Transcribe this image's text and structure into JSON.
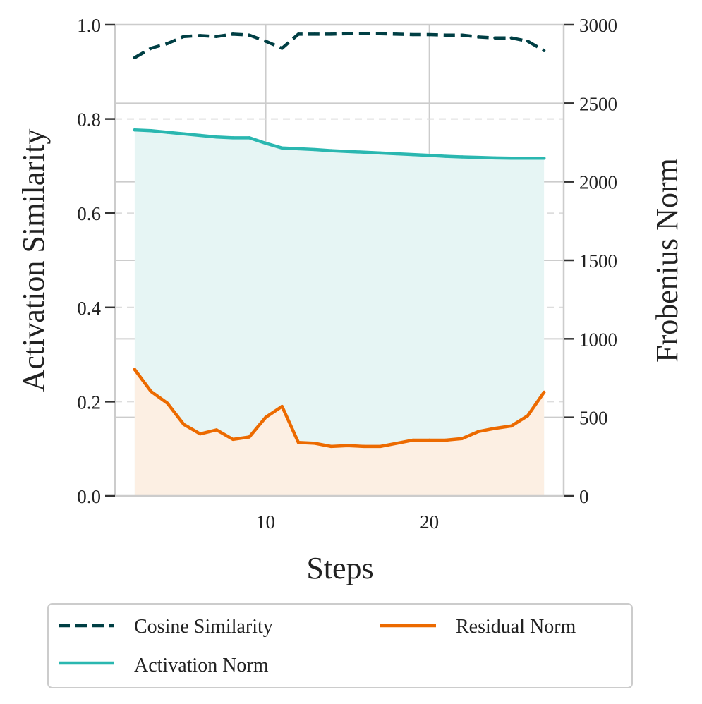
{
  "chart_data": {
    "type": "line",
    "x": [
      2,
      3,
      4,
      5,
      6,
      7,
      8,
      9,
      10,
      11,
      12,
      13,
      14,
      15,
      16,
      17,
      18,
      19,
      20,
      21,
      22,
      23,
      24,
      25,
      26,
      27
    ],
    "xlabel": "Steps",
    "xticks": [
      10,
      20
    ],
    "xlim": [
      0.8,
      28.2
    ],
    "left_axis": {
      "label": "Activation Similarity",
      "ylim": [
        0,
        1
      ],
      "ticks": [
        "0.0",
        "0.2",
        "0.4",
        "0.6",
        "0.8",
        "1.0"
      ],
      "tick_values": [
        0,
        0.2,
        0.4,
        0.6,
        0.8,
        1.0
      ]
    },
    "right_axis": {
      "label": "Frobenius Norm",
      "ylim": [
        0,
        3000
      ],
      "ticks": [
        "0",
        "500",
        "1000",
        "1500",
        "2000",
        "2500",
        "3000"
      ],
      "tick_values": [
        0,
        500,
        1000,
        1500,
        2000,
        2500,
        3000
      ]
    },
    "series": [
      {
        "name": "Cosine Similarity",
        "axis": "left",
        "style": "dashed",
        "color": "#003f44",
        "values": [
          0.93,
          0.95,
          0.96,
          0.975,
          0.977,
          0.975,
          0.98,
          0.978,
          0.965,
          0.95,
          0.98,
          0.98,
          0.98,
          0.981,
          0.981,
          0.981,
          0.98,
          0.979,
          0.979,
          0.978,
          0.978,
          0.974,
          0.972,
          0.972,
          0.965,
          0.945
        ]
      },
      {
        "name": "Activation Norm",
        "axis": "right",
        "style": "solid",
        "fill": true,
        "color": "#2ab7b0",
        "fill_color": "#e6f5f4",
        "values": [
          2330,
          2325,
          2315,
          2305,
          2295,
          2285,
          2280,
          2280,
          2245,
          2215,
          2210,
          2205,
          2198,
          2193,
          2188,
          2183,
          2178,
          2173,
          2168,
          2162,
          2158,
          2155,
          2152,
          2150,
          2150,
          2150
        ]
      },
      {
        "name": "Residual Norm",
        "axis": "right",
        "style": "solid",
        "fill": true,
        "color": "#ec6a00",
        "fill_color": "#fcefe3",
        "values": [
          805,
          665,
          590,
          455,
          395,
          420,
          360,
          375,
          500,
          570,
          340,
          335,
          315,
          320,
          315,
          315,
          335,
          355,
          355,
          355,
          365,
          410,
          430,
          445,
          510,
          660
        ]
      }
    ],
    "legend": {
      "position": "bottom",
      "columns": 2,
      "entries": [
        "Cosine Similarity",
        "Residual Norm",
        "Activation Norm"
      ]
    }
  }
}
